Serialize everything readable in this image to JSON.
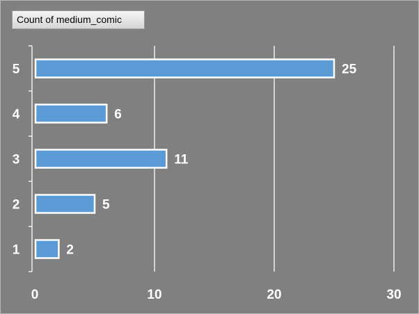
{
  "field_button": {
    "label": "Count of medium_comic"
  },
  "chart_data": {
    "type": "bar",
    "orientation": "horizontal",
    "categories": [
      "1",
      "2",
      "3",
      "4",
      "5"
    ],
    "values": [
      2,
      5,
      11,
      6,
      25
    ],
    "xlim": [
      0,
      30
    ],
    "xticks": [
      0,
      10,
      20,
      30
    ],
    "grid": "vertical",
    "title": "",
    "xlabel": "",
    "ylabel": "",
    "colors": {
      "background": "#808080",
      "bar_fill": "#5b9bd5",
      "bar_outline": "#ffffff",
      "gridline": "#ffffff",
      "text": "#ffffff"
    }
  }
}
